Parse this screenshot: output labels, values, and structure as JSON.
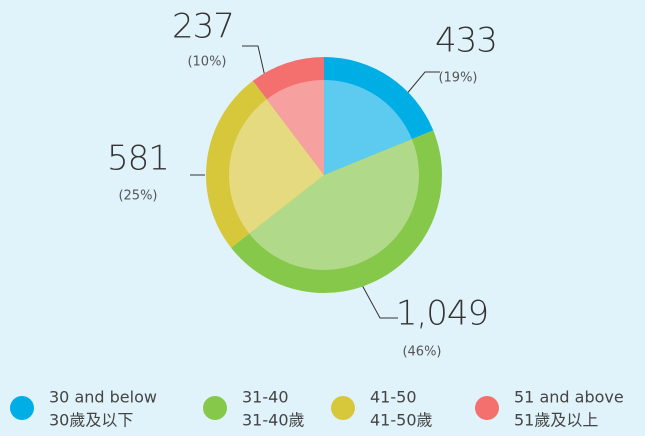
{
  "chart_data": {
    "type": "pie",
    "categories": [
      "30 and below",
      "31-40",
      "41-50",
      "51 and above"
    ],
    "categories_zh": [
      "30歲及以下",
      "31-40歲",
      "41-50歲",
      "51歲及以上"
    ],
    "values": [
      433,
      1049,
      581,
      237
    ],
    "value_labels": [
      "433",
      "1,049",
      "581",
      "237"
    ],
    "percent_labels": [
      "(19%)",
      "(46%)",
      "(25%)",
      "(10%)"
    ],
    "colors": [
      "#00aee6",
      "#86c84a",
      "#d6c83a",
      "#f4706e"
    ],
    "inner_colors": [
      "#5ccbef",
      "#b0da8a",
      "#e6da80",
      "#f6a0a0"
    ],
    "legend": "bottom"
  }
}
